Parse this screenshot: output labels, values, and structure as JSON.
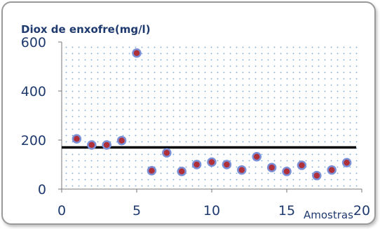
{
  "chart_data": {
    "type": "scatter",
    "ylabel": "Diox de enxofre(mg/l)",
    "xlabel": "Amostras",
    "xlim": [
      0,
      20
    ],
    "ylim": [
      0,
      600
    ],
    "x_ticks": [
      0,
      5,
      10,
      15,
      20
    ],
    "y_ticks": [
      0,
      200,
      400,
      600
    ],
    "grid": "dotted",
    "series": [
      {
        "x": [
          1,
          2,
          3,
          4,
          5,
          6,
          7,
          8,
          9,
          10,
          11,
          12,
          13,
          14,
          15,
          16,
          17,
          18,
          19
        ],
        "y": [
          205,
          180,
          180,
          198,
          555,
          75,
          148,
          72,
          100,
          110,
          100,
          78,
          132,
          88,
          72,
          97,
          55,
          78,
          108
        ]
      }
    ],
    "reference_line": {
      "y": 170
    },
    "colors": {
      "point_fill": "#b0303a",
      "point_ring": "#7a8fd6",
      "line": "#000000",
      "text": "#1f3a6e",
      "grid_dots": "#6fa8dc"
    }
  }
}
